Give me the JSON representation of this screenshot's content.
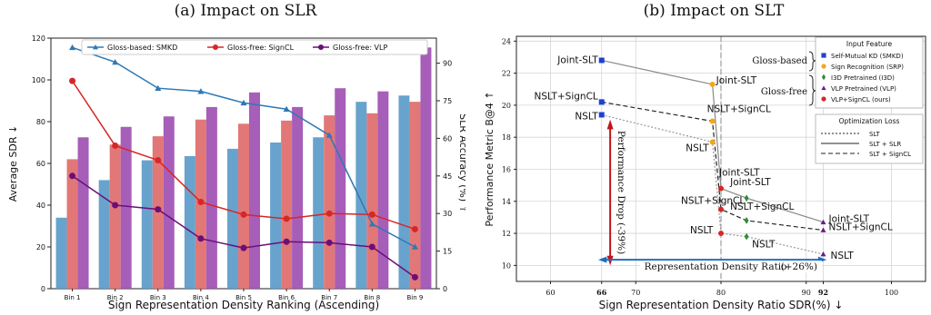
{
  "chart_data": [
    {
      "id": "a",
      "type": "bar",
      "title": "(a) Impact on SLR",
      "xlabel": "Sign Representation Density Ranking (Ascending)",
      "ylabel": "Average SDR ↓",
      "y2label": "SLR Accuracy (%) ↑",
      "categories": [
        "Bin 1",
        "Bin 2",
        "Bin 3",
        "Bin 4",
        "Bin 5",
        "Bin 6",
        "Bin 7",
        "Bin 8",
        "Bin 9"
      ],
      "ylim": [
        0,
        120
      ],
      "yticks": [
        0,
        20,
        40,
        60,
        80,
        100,
        120
      ],
      "y2lim": [
        0,
        100
      ],
      "y2ticks": [
        0,
        15,
        30,
        45,
        60,
        75,
        90
      ],
      "bars": [
        {
          "color": "#5b9bc9",
          "values": [
            34,
            52,
            61.5,
            63.5,
            67,
            70,
            72.5,
            89.5,
            92.5
          ]
        },
        {
          "color": "#e06b6b",
          "values": [
            62,
            69,
            73,
            81,
            79,
            80.5,
            83,
            84,
            89.5
          ]
        },
        {
          "color": "#a050b2",
          "values": [
            72.5,
            77.5,
            82.5,
            87,
            94,
            87,
            96,
            94.5,
            115.5
          ]
        }
      ],
      "lines": [
        {
          "name": "Gloss-based: SMKD",
          "color": "#2e79b5",
          "marker": "triangle",
          "values": [
            115.5,
            108.5,
            96,
            94.5,
            89,
            86,
            73.5,
            31,
            20
          ]
        },
        {
          "name": "Gloss-free: SignCL",
          "color": "#d62728",
          "marker": "circle",
          "values": [
            99.5,
            68.5,
            61.5,
            41.5,
            35.5,
            33.5,
            36,
            35.5,
            28.5
          ]
        },
        {
          "name": "Gloss-free: VLP",
          "color": "#6a0f7a",
          "marker": "circle",
          "values": [
            54,
            40,
            38,
            24,
            19.5,
            22.5,
            22,
            20,
            5.5
          ]
        }
      ],
      "legend_position": "top"
    },
    {
      "id": "b",
      "type": "scatter",
      "title": "(b) Impact on SLT",
      "xlabel": "Sign Representation Density Ratio SDR(%) ↓",
      "ylabel": "Performance Metric B@4 ↑",
      "xlim": [
        56,
        104
      ],
      "ylim": [
        9,
        24.3
      ],
      "xticks": [
        60,
        66,
        70,
        80,
        90,
        92,
        100
      ],
      "yticks": [
        10,
        12,
        14,
        16,
        18,
        20,
        22,
        24
      ],
      "series": [
        {
          "name": "Self-Mutual KD (SMKD)",
          "color": "#1f3fd6",
          "marker": "square",
          "points": [
            {
              "x": 66,
              "y": 22.8,
              "label": "Joint-SLT"
            },
            {
              "x": 66,
              "y": 20.2,
              "label": "NSLT+SignCL"
            },
            {
              "x": 66,
              "y": 19.4,
              "label": "NSLT"
            }
          ]
        },
        {
          "name": "Sign Recognition (SRP)",
          "color": "#f2a71b",
          "marker": "circle",
          "points": [
            {
              "x": 79,
              "y": 21.3,
              "label": "Joint-SLT"
            },
            {
              "x": 79,
              "y": 19.0,
              "label": "NSLT+SignCL"
            },
            {
              "x": 79,
              "y": 17.7,
              "label": "NSLT"
            }
          ]
        },
        {
          "name": "I3D Pretrained (I3D)",
          "color": "#2e8b3a",
          "marker": "diamond",
          "points": [
            {
              "x": 83,
              "y": 14.2,
              "label": "Joint-SLT"
            },
            {
              "x": 83,
              "y": 12.8,
              "label": "NSLT+SignCL"
            },
            {
              "x": 83,
              "y": 11.8,
              "label": "NSLT"
            }
          ]
        },
        {
          "name": "VLP Pretrained (VLP)",
          "color": "#6a1b8a",
          "marker": "triangle",
          "points": [
            {
              "x": 92,
              "y": 12.7,
              "label": "Joint-SLT"
            },
            {
              "x": 92,
              "y": 12.2,
              "label": "NSLT+SignCL"
            },
            {
              "x": 92,
              "y": 10.7,
              "label": "NSLT"
            }
          ]
        },
        {
          "name": "VLP+SignCL (ours)",
          "color": "#d62728",
          "marker": "circle",
          "points": [
            {
              "x": 80,
              "y": 14.8,
              "label": "Joint-SLT"
            },
            {
              "x": 80,
              "y": 13.5,
              "label": "NSLT+SignCL"
            },
            {
              "x": 80,
              "y": 12.0,
              "label": "NSLT"
            }
          ]
        }
      ],
      "loss_lines": [
        {
          "name": "SLT",
          "style": "dotted",
          "order": [
            "SMKD:2",
            "SRP:2",
            "VLPSCL:2",
            "I3D:2",
            "VLP:2"
          ]
        },
        {
          "name": "SLT + SLR",
          "style": "solid",
          "order": [
            "SMKD:0",
            "SRP:0",
            "VLPSCL:0",
            "I3D:0",
            "VLP:0"
          ]
        },
        {
          "name": "SLT + SignCL",
          "style": "dashed",
          "order": [
            "SMKD:1",
            "SRP:1",
            "VLPSCL:1",
            "I3D:1",
            "VLP:1"
          ]
        }
      ],
      "legend_input_title": "Input Feature",
      "legend_loss_title": "Optimization Loss",
      "group_labels": [
        "Gloss-based",
        "Gloss-free"
      ],
      "annotations": {
        "drop_text": "Performance Drop (-39%)",
        "ratio_text": "Representation Density Ratio",
        "ratio_pct": "(+26%)"
      }
    }
  ]
}
